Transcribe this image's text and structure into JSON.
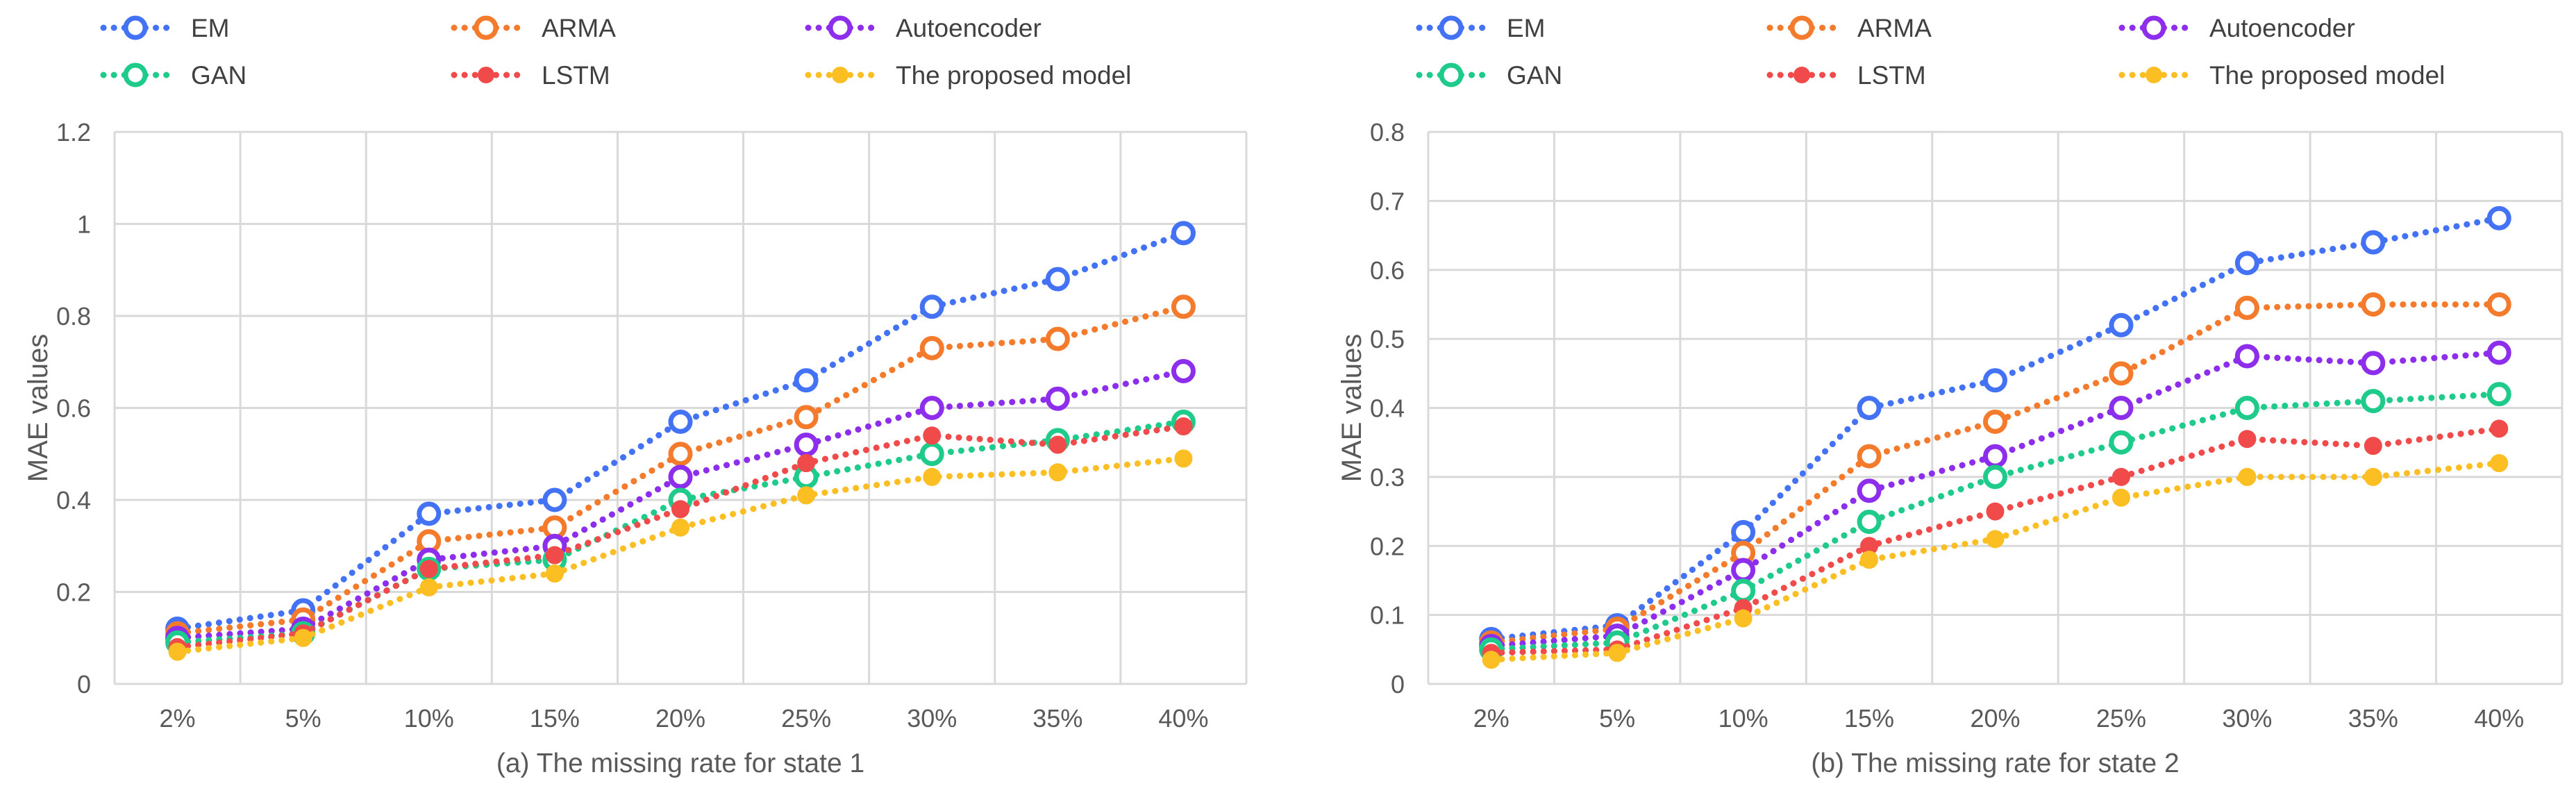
{
  "chart_data": [
    {
      "type": "line",
      "title": "(a) The missing rate for state 1",
      "xlabel": "(a) The missing rate for state 1",
      "ylabel": "MAE values",
      "categories": [
        "2%",
        "5%",
        "10%",
        "15%",
        "20%",
        "25%",
        "30%",
        "35%",
        "40%"
      ],
      "ylim": [
        0,
        1.2
      ],
      "yticks": [
        0,
        0.2,
        0.4,
        0.6,
        0.8,
        1,
        1.2
      ],
      "ytick_labels": [
        "0",
        "0.2",
        "0.4",
        "0.6",
        "0.8",
        "1",
        "1.2"
      ],
      "grid": true,
      "legend_position": "top",
      "series": [
        {
          "name": "EM",
          "color": "#4472F4",
          "marker": "hollow-circle",
          "values": [
            0.12,
            0.16,
            0.37,
            0.4,
            0.57,
            0.66,
            0.82,
            0.88,
            0.98
          ]
        },
        {
          "name": "ARMA",
          "color": "#F47A2C",
          "marker": "hollow-circle",
          "values": [
            0.11,
            0.14,
            0.31,
            0.34,
            0.5,
            0.58,
            0.73,
            0.75,
            0.82
          ]
        },
        {
          "name": "Autoencoder",
          "color": "#8C2EEB",
          "marker": "hollow-circle",
          "values": [
            0.1,
            0.12,
            0.27,
            0.3,
            0.45,
            0.52,
            0.6,
            0.62,
            0.68
          ]
        },
        {
          "name": "GAN",
          "color": "#1FCB8A",
          "marker": "hollow-circle",
          "values": [
            0.09,
            0.11,
            0.25,
            0.27,
            0.4,
            0.45,
            0.5,
            0.53,
            0.57
          ]
        },
        {
          "name": "LSTM",
          "color": "#F04A4A",
          "marker": "filled-circle",
          "values": [
            0.08,
            0.11,
            0.25,
            0.28,
            0.38,
            0.48,
            0.54,
            0.52,
            0.56
          ]
        },
        {
          "name": "The proposed model",
          "color": "#FBBF24",
          "marker": "filled-circle",
          "values": [
            0.07,
            0.1,
            0.21,
            0.24,
            0.34,
            0.41,
            0.45,
            0.46,
            0.49
          ]
        }
      ]
    },
    {
      "type": "line",
      "title": "(b) The missing rate for state 2",
      "xlabel": "(b) The missing rate for state 2",
      "ylabel": "MAE values",
      "categories": [
        "2%",
        "5%",
        "10%",
        "15%",
        "20%",
        "25%",
        "30%",
        "35%",
        "40%"
      ],
      "ylim": [
        0,
        0.8
      ],
      "yticks": [
        0,
        0.1,
        0.2,
        0.3,
        0.4,
        0.5,
        0.6,
        0.7,
        0.8
      ],
      "ytick_labels": [
        "0",
        "0.1",
        "0.2",
        "0.3",
        "0.4",
        "0.5",
        "0.6",
        "0.7",
        "0.8"
      ],
      "grid": true,
      "legend_position": "top",
      "series": [
        {
          "name": "EM",
          "color": "#4472F4",
          "marker": "hollow-circle",
          "values": [
            0.065,
            0.085,
            0.22,
            0.4,
            0.44,
            0.52,
            0.61,
            0.64,
            0.675
          ]
        },
        {
          "name": "ARMA",
          "color": "#F47A2C",
          "marker": "hollow-circle",
          "values": [
            0.06,
            0.08,
            0.19,
            0.33,
            0.38,
            0.45,
            0.545,
            0.55,
            0.55
          ]
        },
        {
          "name": "Autoencoder",
          "color": "#8C2EEB",
          "marker": "hollow-circle",
          "values": [
            0.055,
            0.07,
            0.165,
            0.28,
            0.33,
            0.4,
            0.475,
            0.465,
            0.48
          ]
        },
        {
          "name": "GAN",
          "color": "#1FCB8A",
          "marker": "hollow-circle",
          "values": [
            0.05,
            0.06,
            0.135,
            0.235,
            0.3,
            0.35,
            0.4,
            0.41,
            0.42
          ]
        },
        {
          "name": "LSTM",
          "color": "#F04A4A",
          "marker": "filled-circle",
          "values": [
            0.045,
            0.05,
            0.11,
            0.2,
            0.25,
            0.3,
            0.355,
            0.345,
            0.37
          ]
        },
        {
          "name": "The proposed model",
          "color": "#FBBF24",
          "marker": "filled-circle",
          "values": [
            0.035,
            0.045,
            0.095,
            0.18,
            0.21,
            0.27,
            0.3,
            0.3,
            0.32
          ]
        }
      ]
    }
  ]
}
